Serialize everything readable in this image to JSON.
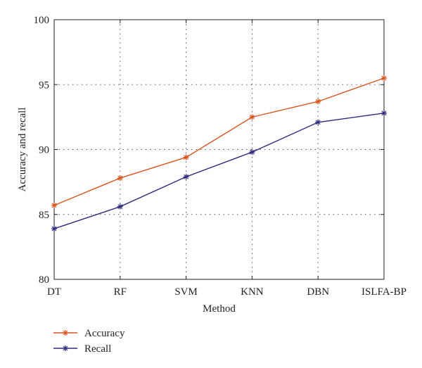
{
  "chart_data": {
    "type": "line",
    "title": "",
    "xlabel": "Method",
    "ylabel": "Accuracy and recall",
    "categories": [
      "DT",
      "RF",
      "SVM",
      "KNN",
      "DBN",
      "ISLFA-BP"
    ],
    "ylim": [
      80,
      100
    ],
    "yticks": [
      "80",
      "85",
      "90",
      "95",
      "100"
    ],
    "grid": true,
    "legend_position": "bottom-left",
    "series": [
      {
        "name": "Accuracy",
        "values": [
          85.7,
          87.8,
          89.4,
          92.5,
          93.7,
          95.5
        ],
        "color": "#d9541e",
        "marker": "asterisk"
      },
      {
        "name": "Recall",
        "values": [
          83.9,
          85.6,
          87.9,
          89.8,
          92.1,
          92.8
        ],
        "color": "#2e2a7e",
        "marker": "asterisk"
      }
    ]
  }
}
